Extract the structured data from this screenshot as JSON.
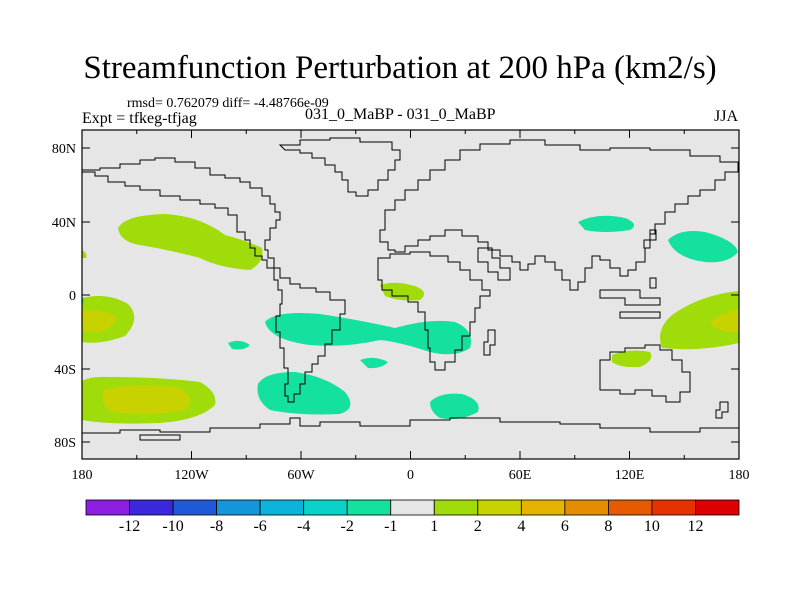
{
  "header": {
    "title": "Streamfunction Perturbation at 200 hPa (km2/s)",
    "stats": "rmsd= 0.762079 diff= -4.48766e-09",
    "experiment": "Expt = tfkeg-tfjag",
    "cases": "031_0_MaBP - 031_0_MaBP",
    "season": "JJA"
  },
  "map": {
    "background_color": "#e6e6e6",
    "lat_labels": [
      "80N",
      "40N",
      "0",
      "40S",
      "80S"
    ],
    "lon_labels": [
      "180",
      "120W",
      "60W",
      "0",
      "60E",
      "120E",
      "180"
    ]
  },
  "colorbar": {
    "colors": [
      "#8b1ee0",
      "#3c28dc",
      "#1e5ad7",
      "#1496dc",
      "#0ab4dc",
      "#0ad2c8",
      "#14e1a0",
      "#e6e6e6",
      "#a0dc0a",
      "#c8d200",
      "#e6b400",
      "#e68c00",
      "#e65a00",
      "#e63200",
      "#dc0000"
    ],
    "labels": [
      "-12",
      "-10",
      "-8",
      "-6",
      "-4",
      "-2",
      "-1",
      "1",
      "2",
      "4",
      "6",
      "8",
      "10",
      "12"
    ]
  },
  "chart_data": {
    "type": "heatmap",
    "title": "Streamfunction Perturbation at 200 hPa (km2/s)",
    "projection": "cylindrical equidistant",
    "xlim": [
      -180,
      180
    ],
    "ylim": [
      -90,
      90
    ],
    "contour_levels": [
      -12,
      -10,
      -8,
      -6,
      -4,
      -2,
      -1,
      1,
      2,
      4,
      6,
      8,
      10,
      12
    ],
    "features": [
      {
        "lon": -140,
        "lat": -55,
        "value": 5
      },
      {
        "lon": -170,
        "lat": -15,
        "value": 4
      },
      {
        "lon": 170,
        "lat": -15,
        "value": 4
      },
      {
        "lon": -130,
        "lat": 35,
        "value": 2
      },
      {
        "lon": 20,
        "lat": 5,
        "value": 2
      },
      {
        "lon": 152,
        "lat": 28,
        "value": -2
      },
      {
        "lon": -95,
        "lat": -15,
        "value": -2
      },
      {
        "lon": 15,
        "lat": -20,
        "value": -2
      },
      {
        "lon": -75,
        "lat": -52,
        "value": -2
      },
      {
        "lon": 28,
        "lat": -60,
        "value": -2
      },
      {
        "lon": -95,
        "lat": -25,
        "value": -2
      }
    ]
  }
}
